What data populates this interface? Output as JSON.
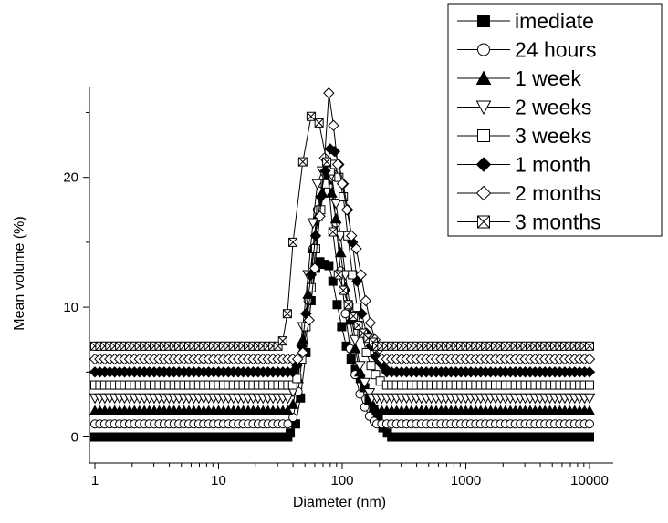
{
  "chart_data": {
    "type": "line",
    "title": "",
    "xlabel": "Diameter (nm)",
    "ylabel": "Mean volume (%)",
    "xscale": "log",
    "xlim": [
      1,
      10000
    ],
    "ylim": [
      -2,
      27
    ],
    "xticks": [
      1,
      10,
      100,
      1000,
      10000
    ],
    "xtick_labels": [
      "1",
      "10",
      "100",
      "1000",
      "10000"
    ],
    "yticks": [
      0,
      10,
      20
    ],
    "ytick_labels": [
      "0",
      "10",
      "20"
    ],
    "grid": false,
    "legend_position": "top-right",
    "series": [
      {
        "name": "imediate",
        "marker": "filled-square",
        "baseline": 0,
        "peak": [
          [
            38,
            0.3
          ],
          [
            42,
            1.0
          ],
          [
            46,
            3.0
          ],
          [
            51,
            6.5
          ],
          [
            56,
            10.5
          ],
          [
            61,
            13.0
          ],
          [
            66,
            13.5
          ],
          [
            72,
            13.3
          ],
          [
            78,
            13.2
          ],
          [
            84,
            12.0
          ],
          [
            91,
            10.2
          ],
          [
            99,
            8.5
          ],
          [
            108,
            7.0
          ],
          [
            118,
            6.0
          ],
          [
            128,
            5.2
          ],
          [
            140,
            4.5
          ],
          [
            152,
            3.8
          ],
          [
            165,
            3.0
          ],
          [
            180,
            2.1
          ],
          [
            196,
            1.3
          ],
          [
            213,
            0.7
          ],
          [
            232,
            0.3
          ]
        ]
      },
      {
        "name": "24 hours",
        "marker": "open-circle",
        "baseline": 1,
        "peak": [
          [
            40,
            1.5
          ],
          [
            44,
            3.5
          ],
          [
            48,
            6.5
          ],
          [
            53,
            10.5
          ],
          [
            58,
            14.5
          ],
          [
            63,
            17.5
          ],
          [
            69,
            19.5
          ],
          [
            75,
            20.5
          ],
          [
            82,
            20.0
          ],
          [
            89,
            16.5
          ],
          [
            97,
            12.8
          ],
          [
            106,
            9.5
          ],
          [
            116,
            6.8
          ],
          [
            127,
            4.8
          ],
          [
            139,
            3.3
          ],
          [
            152,
            2.3
          ],
          [
            166,
            1.6
          ],
          [
            181,
            1.2
          ]
        ]
      },
      {
        "name": "1 week",
        "marker": "filled-triangle-up",
        "baseline": 2,
        "peak": [
          [
            40,
            2.5
          ],
          [
            44,
            4.5
          ],
          [
            48,
            7.5
          ],
          [
            53,
            11.0
          ],
          [
            58,
            14.5
          ],
          [
            63,
            17.0
          ],
          [
            69,
            18.8
          ],
          [
            75,
            19.8
          ],
          [
            82,
            18.8
          ],
          [
            89,
            16.8
          ],
          [
            97,
            14.2
          ],
          [
            106,
            11.5
          ],
          [
            116,
            9.0
          ],
          [
            127,
            6.8
          ],
          [
            139,
            5.0
          ],
          [
            152,
            3.8
          ],
          [
            166,
            2.8
          ],
          [
            181,
            2.3
          ]
        ]
      },
      {
        "name": "2 weeks",
        "marker": "open-triangle-down",
        "baseline": 3,
        "peak": [
          [
            40,
            3.5
          ],
          [
            44,
            5.5
          ],
          [
            48,
            8.5
          ],
          [
            53,
            12.5
          ],
          [
            58,
            16.5
          ],
          [
            63,
            19.5
          ],
          [
            69,
            20.5
          ],
          [
            75,
            21.0
          ],
          [
            82,
            20.2
          ],
          [
            89,
            18.0
          ],
          [
            97,
            15.5
          ],
          [
            106,
            12.5
          ],
          [
            116,
            10.0
          ],
          [
            127,
            7.5
          ],
          [
            139,
            5.5
          ],
          [
            152,
            4.2
          ],
          [
            166,
            3.4
          ]
        ]
      },
      {
        "name": "3 weeks",
        "marker": "open-square",
        "baseline": 4,
        "peak": [
          [
            43,
            4.5
          ],
          [
            47,
            6.0
          ],
          [
            51,
            8.5
          ],
          [
            56,
            11.5
          ],
          [
            61,
            14.5
          ],
          [
            67,
            17.5
          ],
          [
            73,
            19.5
          ],
          [
            80,
            20.5
          ],
          [
            87,
            21.0
          ],
          [
            94,
            20.0
          ],
          [
            102,
            18.5
          ],
          [
            111,
            15.5
          ],
          [
            121,
            12.5
          ],
          [
            132,
            10.0
          ],
          [
            144,
            8.0
          ],
          [
            157,
            6.5
          ],
          [
            171,
            5.5
          ],
          [
            186,
            4.8
          ],
          [
            203,
            4.3
          ]
        ]
      },
      {
        "name": "1 month",
        "marker": "filled-diamond",
        "baseline": 5,
        "peak": [
          [
            43,
            5.5
          ],
          [
            47,
            7.0
          ],
          [
            51,
            9.5
          ],
          [
            56,
            12.5
          ],
          [
            61,
            15.5
          ],
          [
            67,
            18.5
          ],
          [
            73,
            20.5
          ],
          [
            80,
            22.2
          ],
          [
            87,
            22.0
          ],
          [
            94,
            21.0
          ],
          [
            102,
            19.5
          ],
          [
            111,
            17.5
          ],
          [
            121,
            15.0
          ],
          [
            132,
            12.0
          ],
          [
            144,
            9.5
          ],
          [
            157,
            8.0
          ],
          [
            171,
            7.0
          ],
          [
            186,
            6.2
          ],
          [
            203,
            5.7
          ],
          [
            221,
            5.3
          ]
        ]
      },
      {
        "name": "2 months",
        "marker": "open-diamond",
        "baseline": 6,
        "peak": [
          [
            48,
            6.5
          ],
          [
            54,
            9.0
          ],
          [
            60,
            13.0
          ],
          [
            66,
            17.0
          ],
          [
            72,
            21.5
          ],
          [
            78,
            26.5
          ],
          [
            85,
            24.0
          ],
          [
            92,
            21.0
          ],
          [
            100,
            19.5
          ],
          [
            109,
            17.5
          ],
          [
            119,
            15.5
          ],
          [
            130,
            14.5
          ],
          [
            142,
            12.5
          ],
          [
            155,
            10.5
          ],
          [
            169,
            8.8
          ],
          [
            184,
            7.5
          ],
          [
            200,
            6.8
          ]
        ]
      },
      {
        "name": "3 months",
        "marker": "crossed-square",
        "baseline": 7,
        "peak": [
          [
            33,
            7.4
          ],
          [
            36,
            9.5
          ],
          [
            40,
            15.0
          ],
          [
            48,
            21.2
          ],
          [
            56,
            24.7
          ],
          [
            65,
            24.2
          ],
          [
            75,
            21.2
          ],
          [
            84,
            15.8
          ],
          [
            93,
            12.5
          ],
          [
            102,
            11.3
          ],
          [
            112,
            10.2
          ],
          [
            123,
            9.3
          ],
          [
            135,
            8.6
          ],
          [
            148,
            8.0
          ],
          [
            162,
            7.6
          ],
          [
            178,
            7.3
          ]
        ]
      }
    ]
  }
}
